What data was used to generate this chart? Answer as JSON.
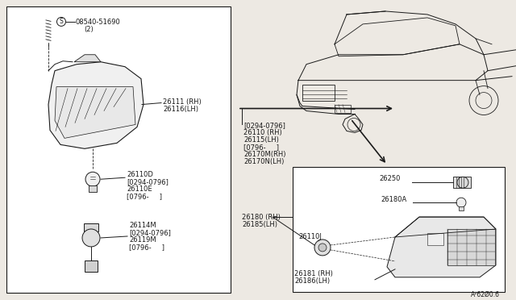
{
  "bg_color": "#ede9e3",
  "line_color": "#1a1a1a",
  "box_color": "#ffffff",
  "text_color": "#1a1a1a",
  "font_size": 6.0,
  "parts": {
    "screw_label": "08540-51690",
    "screw_qty": "(2)",
    "lamp_rh": "26111 (RH)",
    "lamp_lh": "26116(LH)",
    "bulb_line1": "26110D",
    "bulb_line2": "[0294-0796]",
    "bulb_line3": "26110E",
    "bulb_line4": "[0796-     ]",
    "sock_line1": "26114M",
    "sock_line2": "[0294-0796]",
    "sock_line3": "26119M",
    "sock_line4": "[0796-     ]",
    "center_line1": "[0294-0796]",
    "center_line2": "26110 (RH)",
    "center_line3": "26115(LH)",
    "center_line4": "[0796-     ]",
    "center_line5": "26170M(RH)",
    "center_line6": "26170N(LH)",
    "side_line1": "26180 (RH)",
    "side_line2": "26185(LH)",
    "box2_socket": "26250",
    "box2_bulb": "26180A",
    "box2_connector": "26110J",
    "box2_lamp_rh": "26181 (RH)",
    "box2_lamp_lh": "26186(LH)",
    "footer": "A²62Ø0.6"
  }
}
